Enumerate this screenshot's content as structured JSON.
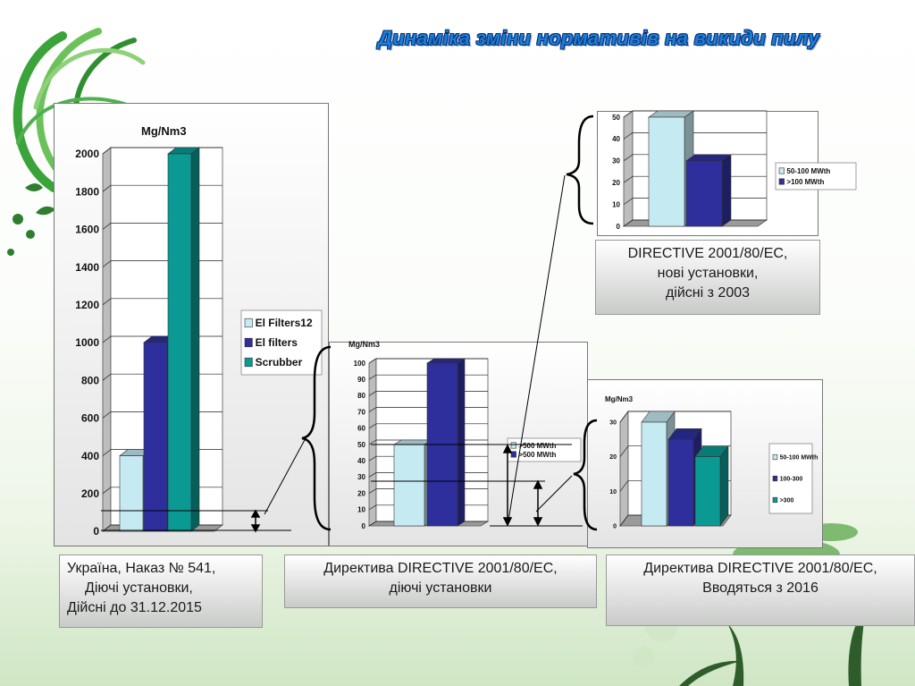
{
  "slide_title": "Динаміка зміни нормативів на викиди пилу",
  "captions": {
    "ukraine": [
      "Україна, Наказ № 541,",
      "Діючі установки,",
      "Дійсні до 31.12.2015"
    ],
    "directive_existing": [
      "Директива DIRECTIVE 2001/80/EC,",
      "діючі установки"
    ],
    "directive_2016": [
      "Директива DIRECTIVE 2001/80/EC,",
      "Вводяться з 2016"
    ],
    "directive_new": [
      "DIRECTIVE 2001/80/EC,",
      "нові установки,",
      "дійсні з 2003"
    ]
  },
  "colors": {
    "light_blue": "#c6eaf2",
    "navy": "#2e2f9c",
    "teal": "#0b9a93",
    "title_blue": "#1a7fd6"
  },
  "chart_data": [
    {
      "id": "ukraine",
      "type": "bar",
      "unit_label": "Mg/Nm3",
      "categories": [
        ""
      ],
      "series": [
        {
          "name": "El Filters12",
          "values": [
            400
          ],
          "color": "#c6eaf2"
        },
        {
          "name": "El filters",
          "values": [
            1000
          ],
          "color": "#2e2f9c"
        },
        {
          "name": "Scrubber",
          "values": [
            2000
          ],
          "color": "#0b9a93"
        }
      ],
      "ylim": [
        0,
        2000
      ],
      "yticks": [
        0,
        200,
        400,
        600,
        800,
        1000,
        1200,
        1400,
        1600,
        1800,
        2000
      ],
      "legend": "right",
      "grid": true
    },
    {
      "id": "directive_existing",
      "type": "bar",
      "unit_label": "Mg/Nm3",
      "categories": [
        ""
      ],
      "series": [
        {
          "name": ">500 MWth",
          "values": [
            50
          ],
          "color": "#c6eaf2"
        },
        {
          "name": ">500 MWth",
          "values": [
            100
          ],
          "color": "#2e2f9c"
        }
      ],
      "ylim": [
        0,
        100
      ],
      "yticks": [
        0,
        10,
        20,
        30,
        40,
        50,
        60,
        70,
        80,
        90,
        100
      ],
      "legend": "right",
      "grid": true
    },
    {
      "id": "directive_2016",
      "type": "bar",
      "unit_label": "Mg/Nm3",
      "categories": [
        ""
      ],
      "series": [
        {
          "name": "50-100 MWth",
          "values": [
            30
          ],
          "color": "#c6eaf2"
        },
        {
          "name": "100-300",
          "values": [
            25
          ],
          "color": "#2e2f9c"
        },
        {
          "name": ">300",
          "values": [
            20
          ],
          "color": "#0b9a93"
        }
      ],
      "ylim": [
        0,
        30
      ],
      "yticks": [
        0,
        10,
        20,
        30
      ],
      "legend": "right",
      "grid": true
    },
    {
      "id": "directive_new",
      "type": "bar",
      "unit_label": "",
      "categories": [
        ""
      ],
      "series": [
        {
          "name": "50-100 MWth",
          "values": [
            50
          ],
          "color": "#c6eaf2"
        },
        {
          "name": ">100 MWth",
          "values": [
            30
          ],
          "color": "#2e2f9c"
        }
      ],
      "ylim": [
        0,
        50
      ],
      "yticks": [
        0,
        10,
        20,
        30,
        40,
        50
      ],
      "legend": "right",
      "grid": true
    }
  ]
}
